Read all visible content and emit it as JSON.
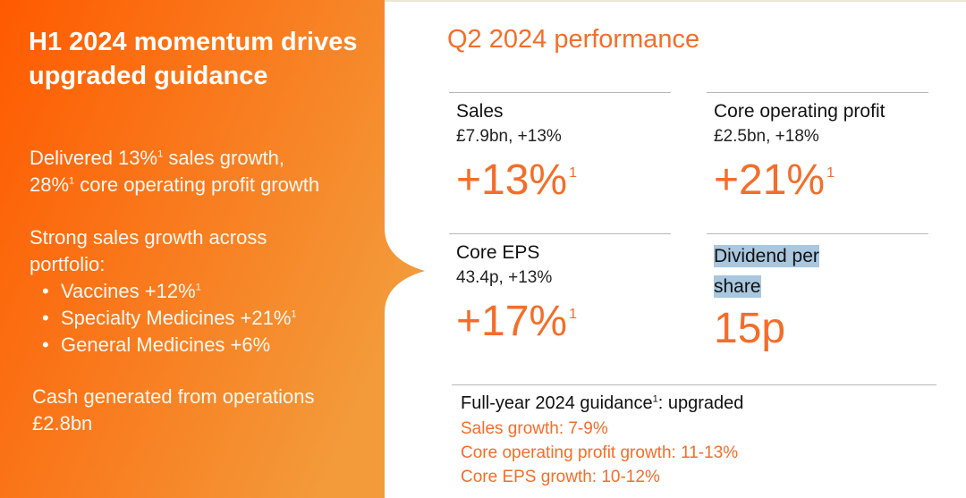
{
  "colors": {
    "accent": "#f36e2a",
    "panel_start": "#ff5a00",
    "panel_end": "#f39a3a",
    "highlight": "#a9c7df"
  },
  "left": {
    "title": "H1 2024 momentum drives upgraded guidance",
    "delivered_line1_pre": "Delivered 13%",
    "delivered_line1_post": " sales growth,",
    "delivered_line2_pre": "28%",
    "delivered_line2_post": " core operating profit growth",
    "footnote_mark": "1",
    "portfolio_intro": "Strong sales growth across portfolio:",
    "portfolio_items": [
      {
        "label": "Vaccines +12%",
        "footnote": "1"
      },
      {
        "label": "Specialty Medicines +21%",
        "footnote": "1"
      },
      {
        "label": "General Medicines +6%",
        "footnote": ""
      }
    ],
    "cash_line1": "Cash generated from operations",
    "cash_line2": "£2.8bn"
  },
  "right": {
    "title": "Q2 2024 performance",
    "metrics": [
      {
        "label": "Sales",
        "sub": "£7.9bn, +13%",
        "big": "+13%",
        "footnote": "1"
      },
      {
        "label": "Core operating profit",
        "sub": "£2.5bn, +18%",
        "big": "+21%",
        "footnote": "1"
      },
      {
        "label": "Core EPS",
        "sub": "43.4p, +13%",
        "big": "+17%",
        "footnote": "1"
      },
      {
        "label_line1": "Dividend per",
        "label_line2": "share",
        "big": "15p"
      }
    ],
    "guidance": {
      "title_pre": "Full-year 2024 guidance",
      "title_footnote": "1",
      "title_post": ": upgraded",
      "lines": [
        "Sales growth: 7-9%",
        "Core operating profit growth: 11-13%",
        "Core EPS growth: 10-12%"
      ]
    }
  }
}
